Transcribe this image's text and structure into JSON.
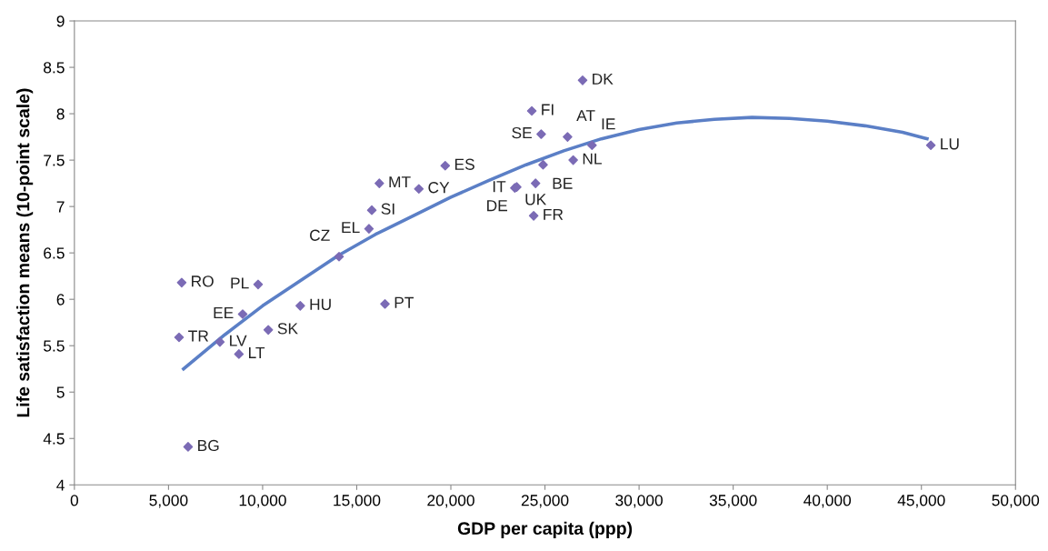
{
  "chart_data": {
    "type": "scatter",
    "xlabel": "GDP per capita (ppp)",
    "ylabel": "Life satisfaction means (10-point scale)",
    "xlim": [
      0,
      50000
    ],
    "ylim": [
      4,
      9
    ],
    "xticks": [
      {
        "value": 0,
        "label": "0"
      },
      {
        "value": 5000,
        "label": "5,000"
      },
      {
        "value": 10000,
        "label": "10,000"
      },
      {
        "value": 15000,
        "label": "15,000"
      },
      {
        "value": 20000,
        "label": "20,000"
      },
      {
        "value": 25000,
        "label": "25,000"
      },
      {
        "value": 30000,
        "label": "30,000"
      },
      {
        "value": 35000,
        "label": "35,000"
      },
      {
        "value": 40000,
        "label": "40,000"
      },
      {
        "value": 45000,
        "label": "45,000"
      },
      {
        "value": 50000,
        "label": "50,000"
      }
    ],
    "yticks": [
      4,
      4.5,
      5,
      5.5,
      6,
      6.5,
      7,
      7.5,
      8,
      8.5,
      9
    ],
    "grid": false,
    "legend": false,
    "marker": "diamond",
    "series": [
      {
        "color": "#7b6bb5",
        "x": [
          27000,
          24300,
          24800,
          26200,
          27500,
          26500,
          24900,
          24500,
          23400,
          23500,
          24400,
          45500,
          19700,
          18300,
          16200,
          15800,
          15650,
          14060,
          16500,
          12000,
          9760,
          5700,
          8940,
          10300,
          7730,
          8740,
          5560,
          6040
        ],
        "values": [
          8.36,
          8.03,
          7.78,
          7.75,
          7.66,
          7.5,
          7.45,
          7.25,
          7.2,
          7.21,
          6.9,
          7.66,
          7.44,
          7.19,
          7.25,
          6.96,
          6.76,
          6.46,
          5.95,
          5.93,
          6.16,
          6.18,
          5.84,
          5.67,
          5.54,
          5.41,
          5.59,
          4.41
        ]
      },
      {
        "type": "line",
        "color": "#5b7fc6",
        "line_style": "solid",
        "marker": "none",
        "x": [
          5800,
          8000,
          10000,
          12000,
          14000,
          16000,
          18000,
          20000,
          22000,
          24000,
          26000,
          28000,
          30000,
          32000,
          34000,
          36000,
          38000,
          40000,
          42000,
          44000,
          45300
        ],
        "values": [
          5.25,
          5.62,
          5.93,
          6.2,
          6.47,
          6.7,
          6.9,
          7.1,
          7.28,
          7.45,
          7.6,
          7.73,
          7.83,
          7.9,
          7.94,
          7.96,
          7.95,
          7.92,
          7.87,
          7.8,
          7.73
        ]
      }
    ],
    "annotations": [
      {
        "text": "DK",
        "x": 27000,
        "y": 8.36
      },
      {
        "text": "FI",
        "x": 24300,
        "y": 8.03
      },
      {
        "text": "SE",
        "x": 24800,
        "y": 7.78
      },
      {
        "text": "AT",
        "x": 26200,
        "y": 7.75
      },
      {
        "text": "IE",
        "x": 27500,
        "y": 7.66
      },
      {
        "text": "NL",
        "x": 26500,
        "y": 7.5
      },
      {
        "text": "BE",
        "x": 24900,
        "y": 7.45
      },
      {
        "text": "UK",
        "x": 24500,
        "y": 7.25
      },
      {
        "text": "IT",
        "x": 23400,
        "y": 7.2
      },
      {
        "text": "DE",
        "x": 23500,
        "y": 7.21
      },
      {
        "text": "FR",
        "x": 24400,
        "y": 6.9
      },
      {
        "text": "LU",
        "x": 45500,
        "y": 7.66
      },
      {
        "text": "ES",
        "x": 19700,
        "y": 7.44
      },
      {
        "text": "CY",
        "x": 18300,
        "y": 7.19
      },
      {
        "text": "MT",
        "x": 16200,
        "y": 7.25
      },
      {
        "text": "SI",
        "x": 15800,
        "y": 6.96
      },
      {
        "text": "EL",
        "x": 15650,
        "y": 6.76
      },
      {
        "text": "CZ",
        "x": 14060,
        "y": 6.46
      },
      {
        "text": "PT",
        "x": 16500,
        "y": 5.95
      },
      {
        "text": "HU",
        "x": 12000,
        "y": 5.93
      },
      {
        "text": "PL",
        "x": 9760,
        "y": 6.16
      },
      {
        "text": "RO",
        "x": 5700,
        "y": 6.18
      },
      {
        "text": "EE",
        "x": 8940,
        "y": 5.84
      },
      {
        "text": "SK",
        "x": 10300,
        "y": 5.67
      },
      {
        "text": "LV",
        "x": 7730,
        "y": 5.54
      },
      {
        "text": "LT",
        "x": 8740,
        "y": 5.41
      },
      {
        "text": "TR",
        "x": 5560,
        "y": 5.59
      },
      {
        "text": "BG",
        "x": 6040,
        "y": 4.41
      }
    ]
  }
}
